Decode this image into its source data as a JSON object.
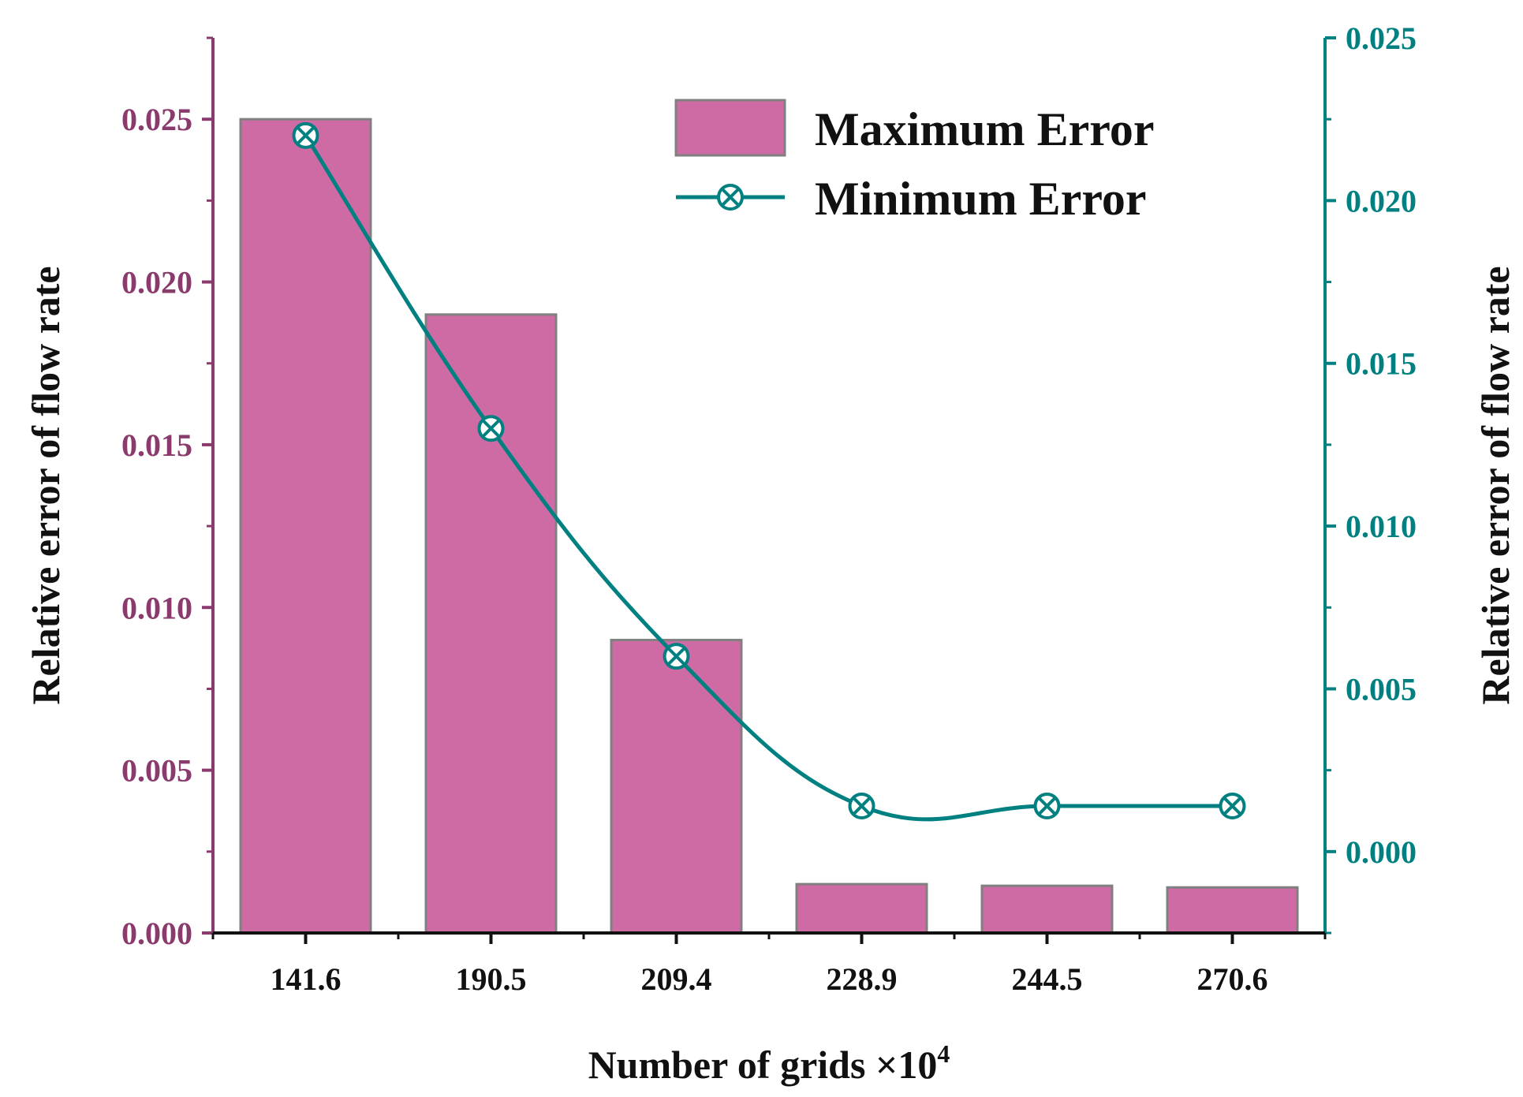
{
  "chart_data": {
    "type": "bar",
    "categories": [
      "141.6",
      "190.5",
      "209.4",
      "228.9",
      "244.5",
      "270.6"
    ],
    "series": [
      {
        "name": "Maximum Error",
        "type": "bar",
        "axis": "left",
        "values": [
          0.025,
          0.019,
          0.009,
          0.0015,
          0.00145,
          0.0014
        ]
      },
      {
        "name": "Minimum Error",
        "type": "line",
        "axis": "right",
        "marker": "circle-x",
        "values": [
          0.022,
          0.013,
          0.006,
          0.0014,
          0.0014,
          0.0014
        ]
      }
    ],
    "xlabel": "Number of grids ×10",
    "xlabel_sup": "4",
    "ylabel_left": "Relative error of flow rate",
    "ylabel_right": "Relative error of flow rate",
    "ylim_left": [
      0,
      0.0275
    ],
    "ylim_right": [
      -0.0025,
      0.025
    ],
    "yticks_left": [
      "0.000",
      "0.005",
      "0.010",
      "0.015",
      "0.020",
      "0.025"
    ],
    "yticks_right": [
      "0.000",
      "0.005",
      "0.010",
      "0.015",
      "0.020",
      "0.025"
    ],
    "legend_position": "top-right",
    "grid": false,
    "colors": {
      "bar_fill": "#CF6BA4",
      "bar_edge": "#808080",
      "line": "#008080",
      "left_axis": "#8B3A6E",
      "right_axis": "#008080",
      "x_axis": "#111111"
    }
  }
}
